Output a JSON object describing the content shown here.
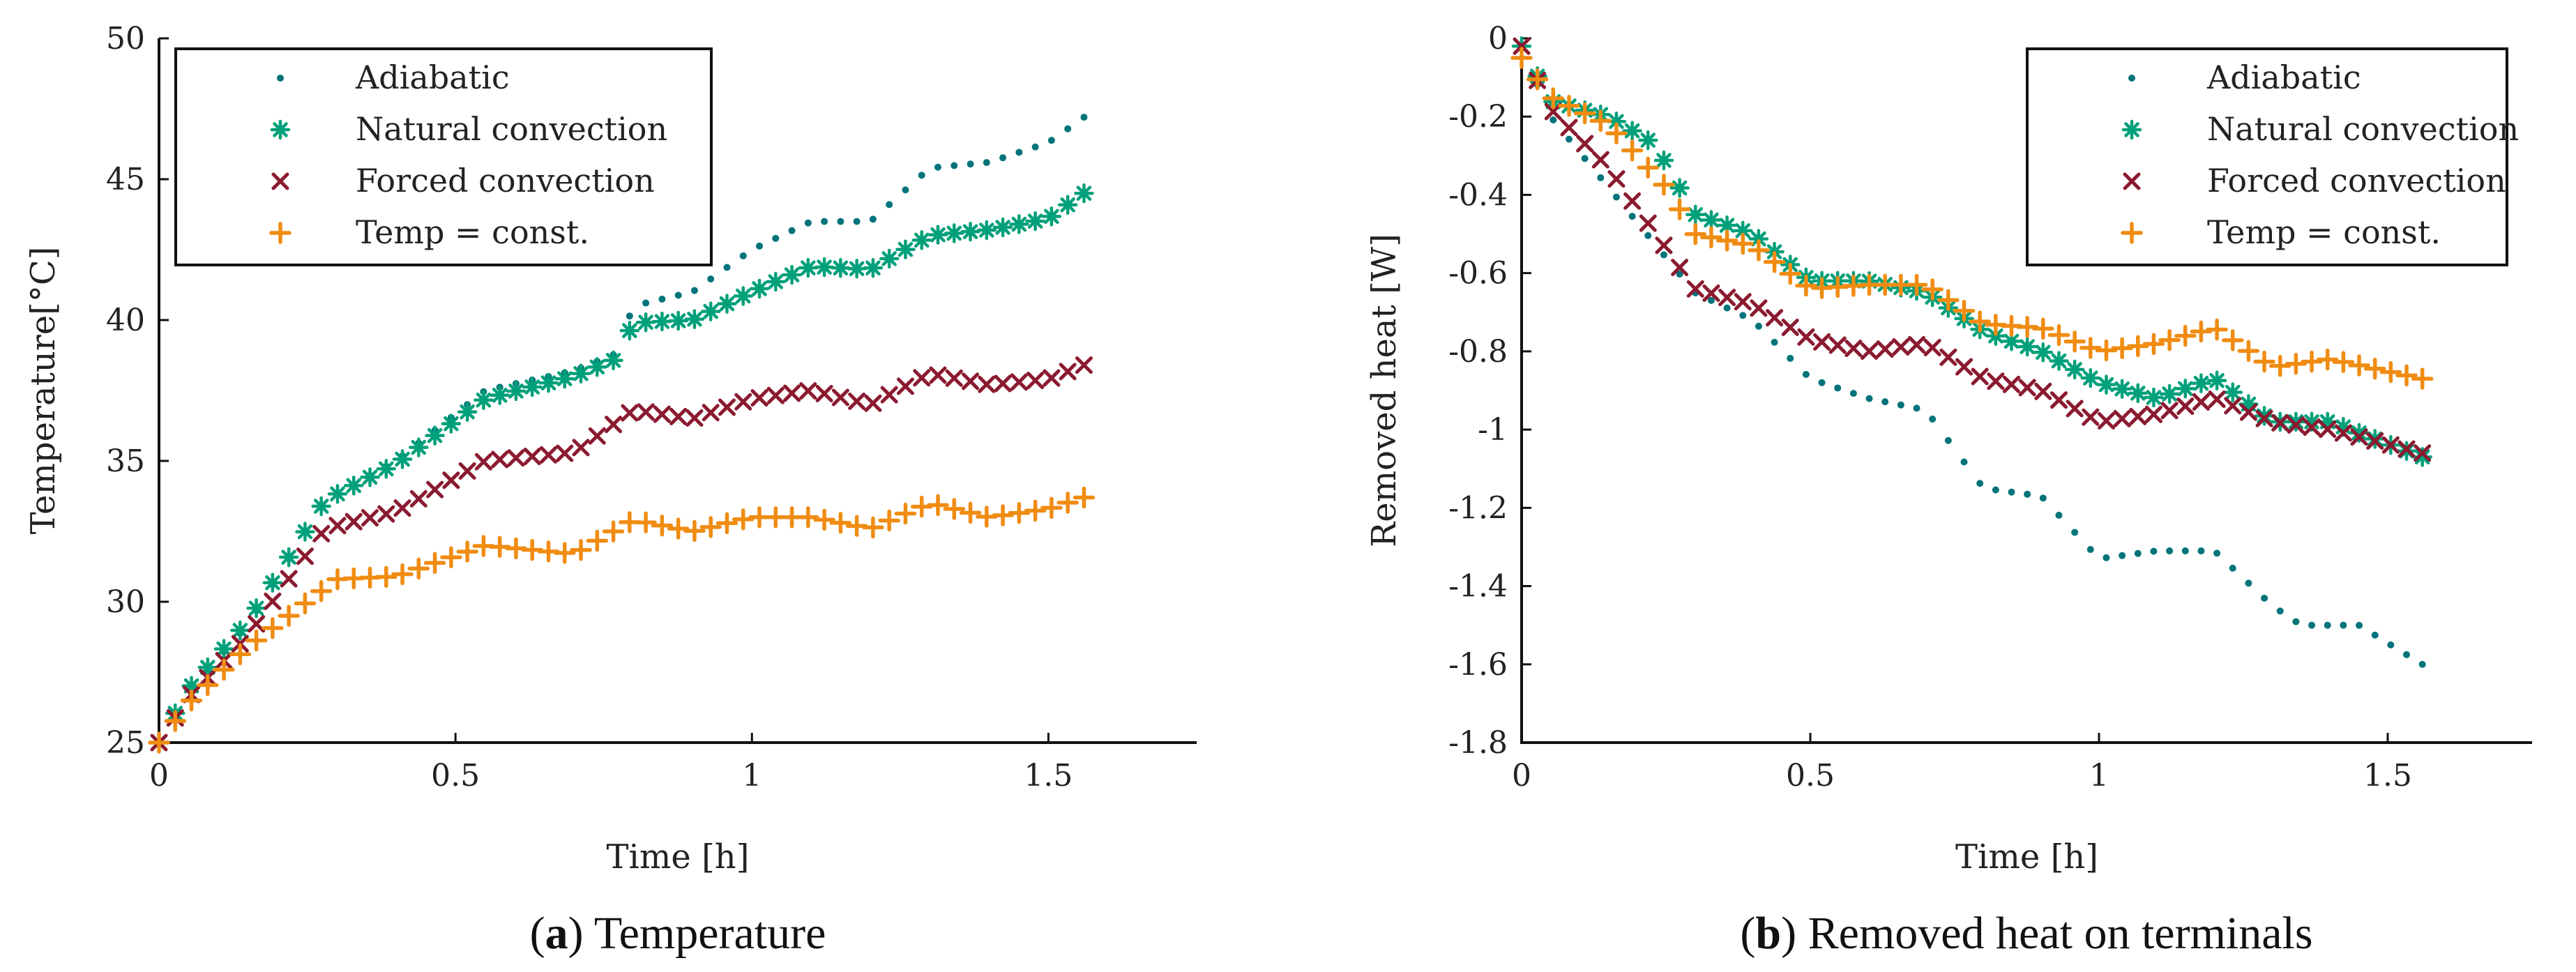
{
  "chart_data": [
    {
      "type": "scatter",
      "caption_letter": "a",
      "caption_text": "Temperature",
      "xlabel": "Time [h]",
      "ylabel": "Temperature[°C]",
      "xlim": [
        0,
        1.75
      ],
      "ylim": [
        25,
        50
      ],
      "xticks": [
        0,
        0.5,
        1,
        1.5
      ],
      "xtick_labels": [
        "0",
        "0.5",
        "1",
        "1.5"
      ],
      "yticks": [
        25,
        30,
        35,
        40,
        45,
        50
      ],
      "ytick_labels": [
        "25",
        "30",
        "35",
        "40",
        "45",
        "50"
      ],
      "legend_position": "top-left",
      "series": [
        {
          "name": "Adiabatic",
          "marker": "dot",
          "color": "#00747a",
          "knots": [
            [
              0,
              25
            ],
            [
              0.05,
              26.8
            ],
            [
              0.15,
              29.2
            ],
            [
              0.28,
              33.6
            ],
            [
              0.4,
              35
            ],
            [
              0.55,
              37.5
            ],
            [
              0.7,
              38.2
            ],
            [
              0.77,
              38.8
            ],
            [
              0.8,
              40.5
            ],
            [
              0.9,
              41
            ],
            [
              1,
              42.5
            ],
            [
              1.1,
              43.5
            ],
            [
              1.2,
              43.5
            ],
            [
              1.3,
              45.4
            ],
            [
              1.4,
              45.6
            ],
            [
              1.5,
              46.3
            ],
            [
              1.56,
              47.2
            ]
          ]
        },
        {
          "name": "Natural convection",
          "marker": "asterisk",
          "color": "#00a07a",
          "knots": [
            [
              0,
              25
            ],
            [
              0.05,
              26.9
            ],
            [
              0.15,
              29.3
            ],
            [
              0.28,
              33.6
            ],
            [
              0.4,
              34.9
            ],
            [
              0.55,
              37.2
            ],
            [
              0.7,
              38
            ],
            [
              0.77,
              38.6
            ],
            [
              0.8,
              39.9
            ],
            [
              0.9,
              40
            ],
            [
              1,
              41
            ],
            [
              1.1,
              41.9
            ],
            [
              1.2,
              41.8
            ],
            [
              1.3,
              43
            ],
            [
              1.4,
              43.2
            ],
            [
              1.5,
              43.6
            ],
            [
              1.56,
              44.5
            ]
          ]
        },
        {
          "name": "Forced convection",
          "marker": "x",
          "color": "#8b1a30",
          "knots": [
            [
              0,
              25
            ],
            [
              0.05,
              26.6
            ],
            [
              0.15,
              28.8
            ],
            [
              0.28,
              32.6
            ],
            [
              0.4,
              33.2
            ],
            [
              0.55,
              35
            ],
            [
              0.7,
              35.3
            ],
            [
              0.8,
              36.8
            ],
            [
              0.9,
              36.5
            ],
            [
              1,
              37.2
            ],
            [
              1.1,
              37.5
            ],
            [
              1.2,
              37
            ],
            [
              1.3,
              38.1
            ],
            [
              1.4,
              37.7
            ],
            [
              1.5,
              37.9
            ],
            [
              1.56,
              38.4
            ]
          ]
        },
        {
          "name": "Temp = const.",
          "marker": "plus",
          "color": "#f08c12",
          "knots": [
            [
              0,
              25
            ],
            [
              0.05,
              26.4
            ],
            [
              0.15,
              28.4
            ],
            [
              0.3,
              30.8
            ],
            [
              0.4,
              30.9
            ],
            [
              0.55,
              32
            ],
            [
              0.7,
              31.7
            ],
            [
              0.8,
              32.9
            ],
            [
              0.9,
              32.5
            ],
            [
              1,
              33
            ],
            [
              1.1,
              33
            ],
            [
              1.2,
              32.6
            ],
            [
              1.3,
              33.5
            ],
            [
              1.4,
              33
            ],
            [
              1.5,
              33.3
            ],
            [
              1.56,
              33.7
            ]
          ]
        }
      ]
    },
    {
      "type": "scatter",
      "caption_letter": "b",
      "caption_text": "Removed heat on terminals",
      "xlabel": "Time [h]",
      "ylabel": "Removed heat [W]",
      "xlim": [
        0,
        1.75
      ],
      "ylim": [
        -1.8,
        0
      ],
      "xticks": [
        0,
        0.5,
        1,
        1.5
      ],
      "xtick_labels": [
        "0",
        "0.5",
        "1",
        "1.5"
      ],
      "yticks": [
        -1.8,
        -1.6,
        -1.4,
        -1.2,
        -1,
        -0.8,
        -0.6,
        -0.4,
        -0.2,
        0
      ],
      "ytick_labels": [
        "-1.8",
        "-1.6",
        "-1.4",
        "-1.2",
        "-1",
        "-0.8",
        "-0.6",
        "-0.4",
        "-0.2",
        "0"
      ],
      "legend_position": "top-right",
      "series": [
        {
          "name": "Adiabatic",
          "marker": "dot",
          "color": "#00747a",
          "knots": [
            [
              0,
              -0.02
            ],
            [
              0.05,
              -0.2
            ],
            [
              0.15,
              -0.38
            ],
            [
              0.3,
              -0.65
            ],
            [
              0.4,
              -0.72
            ],
            [
              0.5,
              -0.87
            ],
            [
              0.6,
              -0.92
            ],
            [
              0.7,
              -0.95
            ],
            [
              0.8,
              -1.15
            ],
            [
              0.9,
              -1.17
            ],
            [
              1,
              -1.33
            ],
            [
              1.1,
              -1.31
            ],
            [
              1.2,
              -1.31
            ],
            [
              1.3,
              -1.45
            ],
            [
              1.35,
              -1.5
            ],
            [
              1.45,
              -1.5
            ],
            [
              1.56,
              -1.6
            ]
          ]
        },
        {
          "name": "Natural convection",
          "marker": "asterisk",
          "color": "#00a07a",
          "knots": [
            [
              0,
              -0.02
            ],
            [
              0.05,
              -0.16
            ],
            [
              0.15,
              -0.2
            ],
            [
              0.23,
              -0.27
            ],
            [
              0.3,
              -0.45
            ],
            [
              0.4,
              -0.5
            ],
            [
              0.5,
              -0.62
            ],
            [
              0.6,
              -0.62
            ],
            [
              0.7,
              -0.65
            ],
            [
              0.8,
              -0.75
            ],
            [
              0.9,
              -0.8
            ],
            [
              1,
              -0.88
            ],
            [
              1.1,
              -0.92
            ],
            [
              1.2,
              -0.87
            ],
            [
              1.3,
              -0.98
            ],
            [
              1.4,
              -0.98
            ],
            [
              1.56,
              -1.07
            ]
          ]
        },
        {
          "name": "Forced convection",
          "marker": "x",
          "color": "#8b1a30",
          "knots": [
            [
              0,
              -0.02
            ],
            [
              0.05,
              -0.18
            ],
            [
              0.15,
              -0.33
            ],
            [
              0.3,
              -0.64
            ],
            [
              0.4,
              -0.68
            ],
            [
              0.5,
              -0.77
            ],
            [
              0.6,
              -0.8
            ],
            [
              0.7,
              -0.78
            ],
            [
              0.8,
              -0.87
            ],
            [
              0.9,
              -0.9
            ],
            [
              1,
              -0.98
            ],
            [
              1.1,
              -0.96
            ],
            [
              1.2,
              -0.92
            ],
            [
              1.3,
              -0.98
            ],
            [
              1.4,
              -1
            ],
            [
              1.56,
              -1.06
            ]
          ]
        },
        {
          "name": "Temp = const.",
          "marker": "plus",
          "color": "#f08c12",
          "knots": [
            [
              0,
              -0.05
            ],
            [
              0.05,
              -0.15
            ],
            [
              0.15,
              -0.22
            ],
            [
              0.25,
              -0.38
            ],
            [
              0.3,
              -0.5
            ],
            [
              0.4,
              -0.53
            ],
            [
              0.5,
              -0.64
            ],
            [
              0.6,
              -0.63
            ],
            [
              0.7,
              -0.63
            ],
            [
              0.8,
              -0.73
            ],
            [
              0.9,
              -0.74
            ],
            [
              1,
              -0.8
            ],
            [
              1.1,
              -0.78
            ],
            [
              1.2,
              -0.74
            ],
            [
              1.3,
              -0.84
            ],
            [
              1.4,
              -0.82
            ],
            [
              1.56,
              -0.87
            ]
          ]
        }
      ]
    }
  ]
}
